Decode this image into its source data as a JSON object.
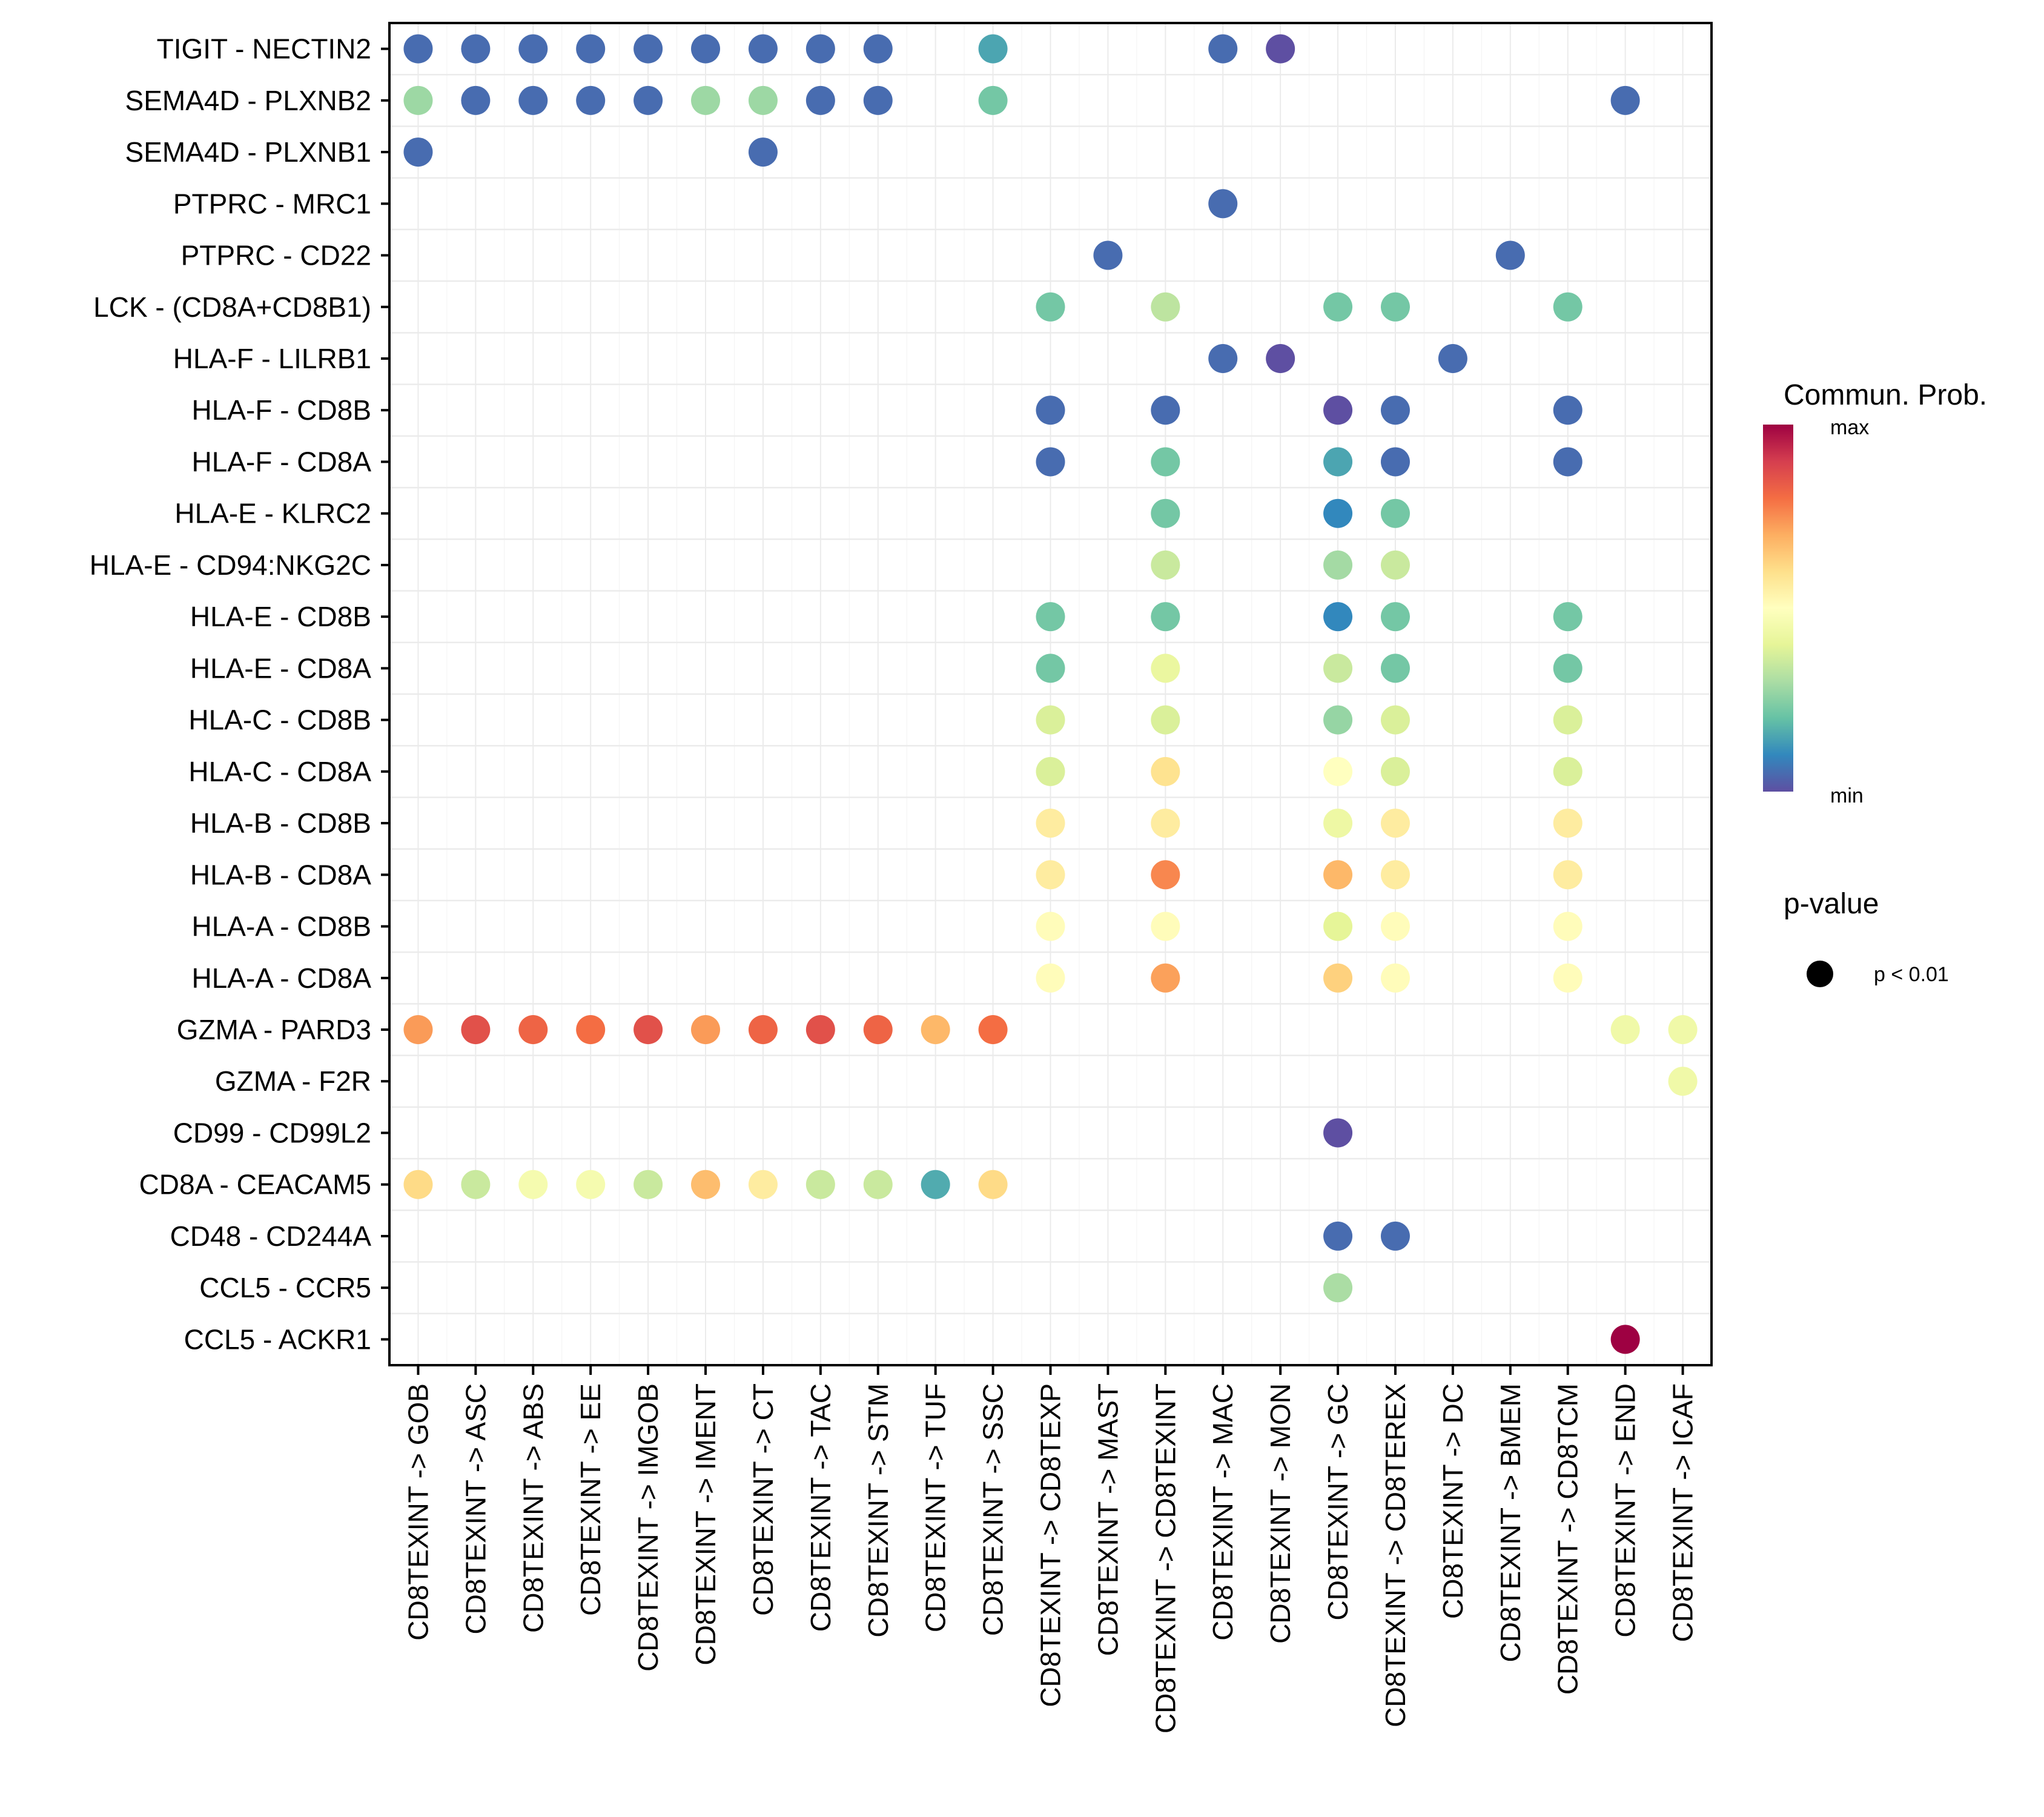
{
  "chart_data": {
    "type": "scatter",
    "subtype": "dot-matrix (bubble grid)",
    "title": "",
    "xlabel": "",
    "ylabel": "",
    "x_categories": [
      "CD8TEXINT -> GOB",
      "CD8TEXINT -> ASC",
      "CD8TEXINT -> ABS",
      "CD8TEXINT -> EE",
      "CD8TEXINT -> IMGOB",
      "CD8TEXINT -> IMENT",
      "CD8TEXINT -> CT",
      "CD8TEXINT -> TAC",
      "CD8TEXINT -> STM",
      "CD8TEXINT -> TUF",
      "CD8TEXINT -> SSC",
      "CD8TEXINT -> CD8TEXP",
      "CD8TEXINT -> MAST",
      "CD8TEXINT -> CD8TEXINT",
      "CD8TEXINT -> MAC",
      "CD8TEXINT -> MON",
      "CD8TEXINT -> GC",
      "CD8TEXINT -> CD8TEREX",
      "CD8TEXINT -> DC",
      "CD8TEXINT -> BMEM",
      "CD8TEXINT -> CD8TCM",
      "CD8TEXINT -> END",
      "CD8TEXINT -> ICAF"
    ],
    "y_categories": [
      "TIGIT - NECTIN2",
      "SEMA4D - PLXNB2",
      "SEMA4D - PLXNB1",
      "PTPRC - MRC1",
      "PTPRC - CD22",
      "LCK - (CD8A+CD8B1)",
      "HLA-F - LILRB1",
      "HLA-F - CD8B",
      "HLA-F - CD8A",
      "HLA-E - KLRC2",
      "HLA-E - CD94:NKG2C",
      "HLA-E - CD8B",
      "HLA-E - CD8A",
      "HLA-C - CD8B",
      "HLA-C - CD8A",
      "HLA-B - CD8B",
      "HLA-B - CD8A",
      "HLA-A - CD8B",
      "HLA-A - CD8A",
      "GZMA - PARD3",
      "GZMA - F2R",
      "CD99 - CD99L2",
      "CD8A - CEACAM5",
      "CD48 - CD244A",
      "CCL5 - CCR5",
      "CCL5 - ACKR1"
    ],
    "value_scale": "relative communication probability, 0 = min, 1 = max",
    "points": [
      {
        "y": "TIGIT - NECTIN2",
        "x": "CD8TEXINT -> GOB",
        "prob": 0.05
      },
      {
        "y": "TIGIT - NECTIN2",
        "x": "CD8TEXINT -> ASC",
        "prob": 0.05
      },
      {
        "y": "TIGIT - NECTIN2",
        "x": "CD8TEXINT -> ABS",
        "prob": 0.05
      },
      {
        "y": "TIGIT - NECTIN2",
        "x": "CD8TEXINT -> EE",
        "prob": 0.05
      },
      {
        "y": "TIGIT - NECTIN2",
        "x": "CD8TEXINT -> IMGOB",
        "prob": 0.05
      },
      {
        "y": "TIGIT - NECTIN2",
        "x": "CD8TEXINT -> IMENT",
        "prob": 0.05
      },
      {
        "y": "TIGIT - NECTIN2",
        "x": "CD8TEXINT -> CT",
        "prob": 0.05
      },
      {
        "y": "TIGIT - NECTIN2",
        "x": "CD8TEXINT -> TAC",
        "prob": 0.05
      },
      {
        "y": "TIGIT - NECTIN2",
        "x": "CD8TEXINT -> STM",
        "prob": 0.05
      },
      {
        "y": "TIGIT - NECTIN2",
        "x": "CD8TEXINT -> SSC",
        "prob": 0.15
      },
      {
        "y": "TIGIT - NECTIN2",
        "x": "CD8TEXINT -> MAC",
        "prob": 0.05
      },
      {
        "y": "TIGIT - NECTIN2",
        "x": "CD8TEXINT -> MON",
        "prob": 0.0
      },
      {
        "y": "SEMA4D - PLXNB2",
        "x": "CD8TEXINT -> GOB",
        "prob": 0.28
      },
      {
        "y": "SEMA4D - PLXNB2",
        "x": "CD8TEXINT -> ASC",
        "prob": 0.05
      },
      {
        "y": "SEMA4D - PLXNB2",
        "x": "CD8TEXINT -> ABS",
        "prob": 0.05
      },
      {
        "y": "SEMA4D - PLXNB2",
        "x": "CD8TEXINT -> EE",
        "prob": 0.05
      },
      {
        "y": "SEMA4D - PLXNB2",
        "x": "CD8TEXINT -> IMGOB",
        "prob": 0.05
      },
      {
        "y": "SEMA4D - PLXNB2",
        "x": "CD8TEXINT -> IMENT",
        "prob": 0.28
      },
      {
        "y": "SEMA4D - PLXNB2",
        "x": "CD8TEXINT -> CT",
        "prob": 0.28
      },
      {
        "y": "SEMA4D - PLXNB2",
        "x": "CD8TEXINT -> TAC",
        "prob": 0.05
      },
      {
        "y": "SEMA4D - PLXNB2",
        "x": "CD8TEXINT -> STM",
        "prob": 0.05
      },
      {
        "y": "SEMA4D - PLXNB2",
        "x": "CD8TEXINT -> SSC",
        "prob": 0.22
      },
      {
        "y": "SEMA4D - PLXNB2",
        "x": "CD8TEXINT -> END",
        "prob": 0.05
      },
      {
        "y": "SEMA4D - PLXNB1",
        "x": "CD8TEXINT -> GOB",
        "prob": 0.05
      },
      {
        "y": "SEMA4D - PLXNB1",
        "x": "CD8TEXINT -> CT",
        "prob": 0.05
      },
      {
        "y": "PTPRC - MRC1",
        "x": "CD8TEXINT -> MAC",
        "prob": 0.05
      },
      {
        "y": "PTPRC - CD22",
        "x": "CD8TEXINT -> MAST",
        "prob": 0.05
      },
      {
        "y": "PTPRC - CD22",
        "x": "CD8TEXINT -> BMEM",
        "prob": 0.05
      },
      {
        "y": "LCK - (CD8A+CD8B1)",
        "x": "CD8TEXINT -> CD8TEXP",
        "prob": 0.22
      },
      {
        "y": "LCK - (CD8A+CD8B1)",
        "x": "CD8TEXINT -> CD8TEXINT",
        "prob": 0.33
      },
      {
        "y": "LCK - (CD8A+CD8B1)",
        "x": "CD8TEXINT -> GC",
        "prob": 0.22
      },
      {
        "y": "LCK - (CD8A+CD8B1)",
        "x": "CD8TEXINT -> CD8TEREX",
        "prob": 0.22
      },
      {
        "y": "LCK - (CD8A+CD8B1)",
        "x": "CD8TEXINT -> CD8TCM",
        "prob": 0.22
      },
      {
        "y": "HLA-F - LILRB1",
        "x": "CD8TEXINT -> MAC",
        "prob": 0.05
      },
      {
        "y": "HLA-F - LILRB1",
        "x": "CD8TEXINT -> MON",
        "prob": 0.0
      },
      {
        "y": "HLA-F - LILRB1",
        "x": "CD8TEXINT -> DC",
        "prob": 0.05
      },
      {
        "y": "HLA-F - CD8B",
        "x": "CD8TEXINT -> CD8TEXP",
        "prob": 0.05
      },
      {
        "y": "HLA-F - CD8B",
        "x": "CD8TEXINT -> CD8TEXINT",
        "prob": 0.05
      },
      {
        "y": "HLA-F - CD8B",
        "x": "CD8TEXINT -> GC",
        "prob": 0.0
      },
      {
        "y": "HLA-F - CD8B",
        "x": "CD8TEXINT -> CD8TEREX",
        "prob": 0.05
      },
      {
        "y": "HLA-F - CD8B",
        "x": "CD8TEXINT -> CD8TCM",
        "prob": 0.05
      },
      {
        "y": "HLA-F - CD8A",
        "x": "CD8TEXINT -> CD8TEXP",
        "prob": 0.05
      },
      {
        "y": "HLA-F - CD8A",
        "x": "CD8TEXINT -> CD8TEXINT",
        "prob": 0.22
      },
      {
        "y": "HLA-F - CD8A",
        "x": "CD8TEXINT -> GC",
        "prob": 0.15
      },
      {
        "y": "HLA-F - CD8A",
        "x": "CD8TEXINT -> CD8TEREX",
        "prob": 0.05
      },
      {
        "y": "HLA-F - CD8A",
        "x": "CD8TEXINT -> CD8TCM",
        "prob": 0.05
      },
      {
        "y": "HLA-E - KLRC2",
        "x": "CD8TEXINT -> CD8TEXINT",
        "prob": 0.22
      },
      {
        "y": "HLA-E - KLRC2",
        "x": "CD8TEXINT -> GC",
        "prob": 0.1
      },
      {
        "y": "HLA-E - KLRC2",
        "x": "CD8TEXINT -> CD8TEREX",
        "prob": 0.22
      },
      {
        "y": "HLA-E - CD94:NKG2C",
        "x": "CD8TEXINT -> CD8TEXINT",
        "prob": 0.35
      },
      {
        "y": "HLA-E - CD94:NKG2C",
        "x": "CD8TEXINT -> GC",
        "prob": 0.29
      },
      {
        "y": "HLA-E - CD94:NKG2C",
        "x": "CD8TEXINT -> CD8TEREX",
        "prob": 0.35
      },
      {
        "y": "HLA-E - CD8B",
        "x": "CD8TEXINT -> CD8TEXP",
        "prob": 0.22
      },
      {
        "y": "HLA-E - CD8B",
        "x": "CD8TEXINT -> CD8TEXINT",
        "prob": 0.22
      },
      {
        "y": "HLA-E - CD8B",
        "x": "CD8TEXINT -> GC",
        "prob": 0.1
      },
      {
        "y": "HLA-E - CD8B",
        "x": "CD8TEXINT -> CD8TEREX",
        "prob": 0.22
      },
      {
        "y": "HLA-E - CD8B",
        "x": "CD8TEXINT -> CD8TCM",
        "prob": 0.22
      },
      {
        "y": "HLA-E - CD8A",
        "x": "CD8TEXINT -> CD8TEXP",
        "prob": 0.22
      },
      {
        "y": "HLA-E - CD8A",
        "x": "CD8TEXINT -> CD8TEXINT",
        "prob": 0.42
      },
      {
        "y": "HLA-E - CD8A",
        "x": "CD8TEXINT -> GC",
        "prob": 0.35
      },
      {
        "y": "HLA-E - CD8A",
        "x": "CD8TEXINT -> CD8TEREX",
        "prob": 0.22
      },
      {
        "y": "HLA-E - CD8A",
        "x": "CD8TEXINT -> CD8TCM",
        "prob": 0.22
      },
      {
        "y": "HLA-C - CD8B",
        "x": "CD8TEXINT -> CD8TEXP",
        "prob": 0.38
      },
      {
        "y": "HLA-C - CD8B",
        "x": "CD8TEXINT -> CD8TEXINT",
        "prob": 0.38
      },
      {
        "y": "HLA-C - CD8B",
        "x": "CD8TEXINT -> GC",
        "prob": 0.27
      },
      {
        "y": "HLA-C - CD8B",
        "x": "CD8TEXINT -> CD8TEREX",
        "prob": 0.38
      },
      {
        "y": "HLA-C - CD8B",
        "x": "CD8TEXINT -> CD8TCM",
        "prob": 0.38
      },
      {
        "y": "HLA-C - CD8A",
        "x": "CD8TEXINT -> CD8TEXP",
        "prob": 0.38
      },
      {
        "y": "HLA-C - CD8A",
        "x": "CD8TEXINT -> CD8TEXINT",
        "prob": 0.59
      },
      {
        "y": "HLA-C - CD8A",
        "x": "CD8TEXINT -> GC",
        "prob": 0.5
      },
      {
        "y": "HLA-C - CD8A",
        "x": "CD8TEXINT -> CD8TEREX",
        "prob": 0.38
      },
      {
        "y": "HLA-C - CD8A",
        "x": "CD8TEXINT -> CD8TCM",
        "prob": 0.38
      },
      {
        "y": "HLA-B - CD8B",
        "x": "CD8TEXINT -> CD8TEXP",
        "prob": 0.56
      },
      {
        "y": "HLA-B - CD8B",
        "x": "CD8TEXINT -> CD8TEXINT",
        "prob": 0.56
      },
      {
        "y": "HLA-B - CD8B",
        "x": "CD8TEXINT -> GC",
        "prob": 0.43
      },
      {
        "y": "HLA-B - CD8B",
        "x": "CD8TEXINT -> CD8TEREX",
        "prob": 0.56
      },
      {
        "y": "HLA-B - CD8B",
        "x": "CD8TEXINT -> CD8TCM",
        "prob": 0.56
      },
      {
        "y": "HLA-B - CD8A",
        "x": "CD8TEXINT -> CD8TEXP",
        "prob": 0.56
      },
      {
        "y": "HLA-B - CD8A",
        "x": "CD8TEXINT -> CD8TEXINT",
        "prob": 0.76
      },
      {
        "y": "HLA-B - CD8A",
        "x": "CD8TEXINT -> GC",
        "prob": 0.68
      },
      {
        "y": "HLA-B - CD8A",
        "x": "CD8TEXINT -> CD8TEREX",
        "prob": 0.56
      },
      {
        "y": "HLA-B - CD8A",
        "x": "CD8TEXINT -> CD8TCM",
        "prob": 0.56
      },
      {
        "y": "HLA-A - CD8B",
        "x": "CD8TEXINT -> CD8TEXP",
        "prob": 0.51
      },
      {
        "y": "HLA-A - CD8B",
        "x": "CD8TEXINT -> CD8TEXINT",
        "prob": 0.51
      },
      {
        "y": "HLA-A - CD8B",
        "x": "CD8TEXINT -> GC",
        "prob": 0.4
      },
      {
        "y": "HLA-A - CD8B",
        "x": "CD8TEXINT -> CD8TEREX",
        "prob": 0.51
      },
      {
        "y": "HLA-A - CD8B",
        "x": "CD8TEXINT -> CD8TCM",
        "prob": 0.51
      },
      {
        "y": "HLA-A - CD8A",
        "x": "CD8TEXINT -> CD8TEXP",
        "prob": 0.51
      },
      {
        "y": "HLA-A - CD8A",
        "x": "CD8TEXINT -> CD8TEXINT",
        "prob": 0.72
      },
      {
        "y": "HLA-A - CD8A",
        "x": "CD8TEXINT -> GC",
        "prob": 0.63
      },
      {
        "y": "HLA-A - CD8A",
        "x": "CD8TEXINT -> CD8TEREX",
        "prob": 0.51
      },
      {
        "y": "HLA-A - CD8A",
        "x": "CD8TEXINT -> CD8TCM",
        "prob": 0.51
      },
      {
        "y": "GZMA - PARD3",
        "x": "CD8TEXINT -> GOB",
        "prob": 0.73
      },
      {
        "y": "GZMA - PARD3",
        "x": "CD8TEXINT -> ASC",
        "prob": 0.86
      },
      {
        "y": "GZMA - PARD3",
        "x": "CD8TEXINT -> ABS",
        "prob": 0.82
      },
      {
        "y": "GZMA - PARD3",
        "x": "CD8TEXINT -> EE",
        "prob": 0.8
      },
      {
        "y": "GZMA - PARD3",
        "x": "CD8TEXINT -> IMGOB",
        "prob": 0.86
      },
      {
        "y": "GZMA - PARD3",
        "x": "CD8TEXINT -> IMENT",
        "prob": 0.73
      },
      {
        "y": "GZMA - PARD3",
        "x": "CD8TEXINT -> CT",
        "prob": 0.82
      },
      {
        "y": "GZMA - PARD3",
        "x": "CD8TEXINT -> TAC",
        "prob": 0.86
      },
      {
        "y": "GZMA - PARD3",
        "x": "CD8TEXINT -> STM",
        "prob": 0.82
      },
      {
        "y": "GZMA - PARD3",
        "x": "CD8TEXINT -> TUF",
        "prob": 0.68
      },
      {
        "y": "GZMA - PARD3",
        "x": "CD8TEXINT -> SSC",
        "prob": 0.8
      },
      {
        "y": "GZMA - PARD3",
        "x": "CD8TEXINT -> END",
        "prob": 0.44
      },
      {
        "y": "GZMA - PARD3",
        "x": "CD8TEXINT -> ICAF",
        "prob": 0.44
      },
      {
        "y": "GZMA - F2R",
        "x": "CD8TEXINT -> ICAF",
        "prob": 0.44
      },
      {
        "y": "CD99 - CD99L2",
        "x": "CD8TEXINT -> GC",
        "prob": 0.0
      },
      {
        "y": "CD8A - CEACAM5",
        "x": "CD8TEXINT -> GOB",
        "prob": 0.61
      },
      {
        "y": "CD8A - CEACAM5",
        "x": "CD8TEXINT -> ASC",
        "prob": 0.35
      },
      {
        "y": "CD8A - CEACAM5",
        "x": "CD8TEXINT -> ABS",
        "prob": 0.46
      },
      {
        "y": "CD8A - CEACAM5",
        "x": "CD8TEXINT -> EE",
        "prob": 0.46
      },
      {
        "y": "CD8A - CEACAM5",
        "x": "CD8TEXINT -> IMGOB",
        "prob": 0.35
      },
      {
        "y": "CD8A - CEACAM5",
        "x": "CD8TEXINT -> IMENT",
        "prob": 0.67
      },
      {
        "y": "CD8A - CEACAM5",
        "x": "CD8TEXINT -> CT",
        "prob": 0.56
      },
      {
        "y": "CD8A - CEACAM5",
        "x": "CD8TEXINT -> TAC",
        "prob": 0.35
      },
      {
        "y": "CD8A - CEACAM5",
        "x": "CD8TEXINT -> STM",
        "prob": 0.35
      },
      {
        "y": "CD8A - CEACAM5",
        "x": "CD8TEXINT -> TUF",
        "prob": 0.16
      },
      {
        "y": "CD8A - CEACAM5",
        "x": "CD8TEXINT -> SSC",
        "prob": 0.61
      },
      {
        "y": "CD48 - CD244A",
        "x": "CD8TEXINT -> GC",
        "prob": 0.05
      },
      {
        "y": "CD48 - CD244A",
        "x": "CD8TEXINT -> CD8TEREX",
        "prob": 0.05
      },
      {
        "y": "CCL5 - CCR5",
        "x": "CD8TEXINT -> GC",
        "prob": 0.3
      },
      {
        "y": "CCL5 - ACKR1",
        "x": "CD8TEXINT -> END",
        "prob": 1.0
      }
    ],
    "colorbar": {
      "title": "Commun. Prob.",
      "max_label": "max",
      "min_label": "min",
      "palette": [
        "#5E4FA2",
        "#3288BD",
        "#66C2A5",
        "#ABDDA4",
        "#E6F598",
        "#FFFFBF",
        "#FEE08B",
        "#FDAE61",
        "#F46D43",
        "#D53E4F",
        "#9E0142"
      ]
    },
    "size_legend": {
      "title": "p-value",
      "entries": [
        {
          "label": "p < 0.01"
        }
      ]
    },
    "grid": true,
    "legend_position": "right"
  }
}
